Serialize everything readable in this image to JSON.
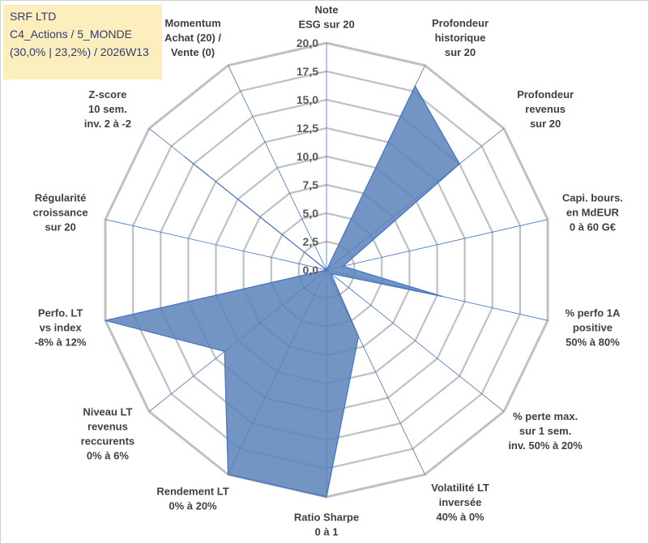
{
  "info": {
    "line1": "SRF LTD",
    "line2": "C4_Actions / 5_MONDE",
    "line3": "(30,0% | 23,2%) / 2026W13"
  },
  "colors": {
    "fill": "#5b82b8",
    "stroke": "#4472c4",
    "grid": "#c0c0c0",
    "spoke": "#4472c4"
  },
  "chart_data": {
    "type": "radar",
    "title": "",
    "rmax": 20,
    "tick_step": 2.5,
    "tick_labels": [
      "0,0",
      "2,5",
      "5,0",
      "7,5",
      "10,0",
      "12,5",
      "15,0",
      "17,5",
      "20,0"
    ],
    "axes": [
      [
        "Note",
        "ESG sur 20"
      ],
      [
        "Profondeur",
        "historique",
        "sur 20"
      ],
      [
        "Profondeur",
        "revenus",
        "sur 20"
      ],
      [
        "Capi. bours.",
        "en MdEUR",
        "0 à 60 G€"
      ],
      [
        "% perfo 1A",
        "positive",
        "50% à 80%"
      ],
      [
        "% perte max.",
        "sur 1 sem.",
        "inv. 50% à 20%"
      ],
      [
        "Volatilité LT",
        "inversée",
        "40% à 0%"
      ],
      [
        "Ratio Sharpe",
        "0 à 1"
      ],
      [
        "Rendement LT",
        "0% à 20%"
      ],
      [
        "Niveau LT",
        "revenus",
        "reccurents",
        "0% à 6%"
      ],
      [
        "Perfo. LT",
        "vs index",
        "-8% à 12%"
      ],
      [
        "Régularité",
        "croissance",
        "sur 20"
      ],
      [
        "Z-score",
        "10 sem.",
        "inv. 2 à -2"
      ],
      [
        "Momentum",
        "Achat (20) /",
        "Vente (0)"
      ]
    ],
    "series": [
      {
        "name": "SRF LTD",
        "values": [
          0,
          18.0,
          15.0,
          1.5,
          10.5,
          0.5,
          6.5,
          20.0,
          20.0,
          11.5,
          20.0,
          0,
          16.0,
          0
        ]
      }
    ]
  }
}
